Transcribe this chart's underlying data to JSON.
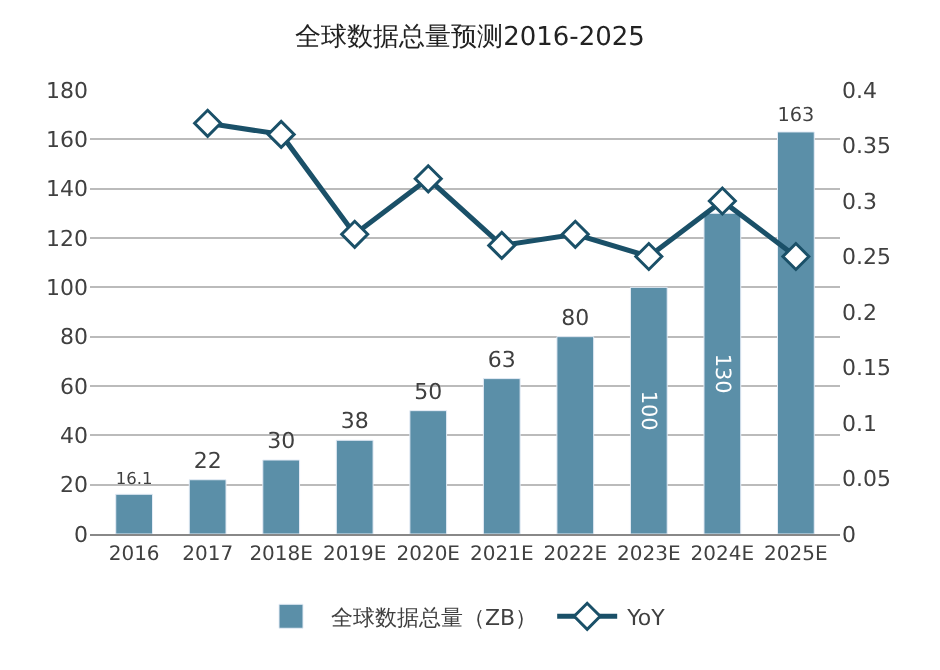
{
  "chart_data": {
    "type": "bar",
    "title": "全球数据总量预测2016-2025",
    "categories": [
      "2016",
      "2017",
      "2018E",
      "2019E",
      "2020E",
      "2021E",
      "2022E",
      "2023E",
      "2024E",
      "2025E"
    ],
    "series": [
      {
        "name": "全球数据总量（ZB）",
        "color": "#5b8fa8",
        "values": [
          16.1,
          22,
          30,
          38,
          50,
          63,
          80,
          100,
          130,
          163
        ],
        "data_labels": true
      },
      {
        "name": "YoY",
        "type": "line",
        "axis": "y2",
        "color": "#1a5068",
        "marker": "diamond",
        "values": [
          null,
          0.37,
          0.36,
          0.27,
          0.32,
          0.26,
          0.27,
          0.25,
          0.3,
          0.25
        ]
      }
    ],
    "ylim": [
      0,
      180
    ],
    "yticks": [
      0,
      20,
      40,
      60,
      80,
      100,
      120,
      140,
      160,
      180
    ],
    "y2lim": [
      0,
      0.4
    ],
    "y2ticks": [
      {
        "value": 0,
        "label": "0"
      },
      0.05,
      0.1,
      0.15,
      0.2,
      0.25,
      0.3,
      0.35,
      0.4
    ],
    "grid": "y",
    "legend": "bottom"
  }
}
